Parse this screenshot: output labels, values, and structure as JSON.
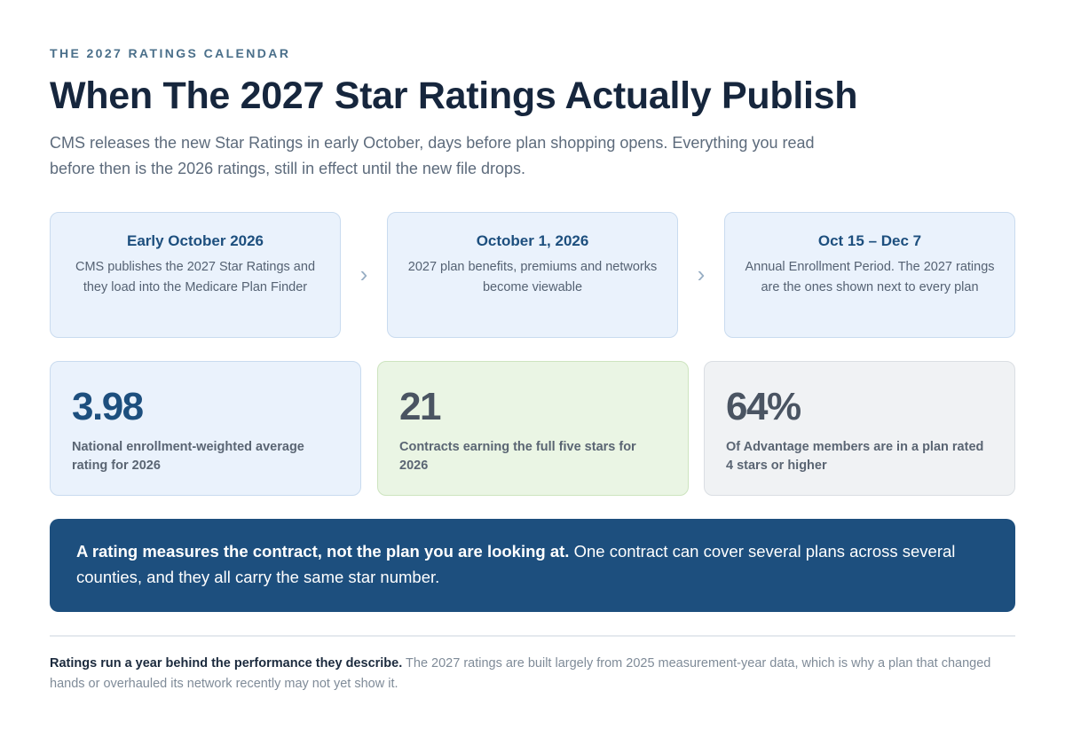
{
  "header": {
    "eyebrow": "THE 2027 RATINGS CALENDAR",
    "title": "When The 2027 Star Ratings Actually Publish",
    "subtitle": "CMS releases the new Star Ratings in early October, days before plan shopping opens. Everything you read before then is the 2026 ratings, still in effect until the new file drops."
  },
  "timeline": {
    "arrow_glyph": "›",
    "steps": [
      {
        "title": "Early October 2026",
        "description": "CMS publishes the 2027 Star Ratings and they load into the Medicare Plan Finder"
      },
      {
        "title": "October 1, 2026",
        "description": "2027 plan benefits, premiums and networks become viewable"
      },
      {
        "title": "Oct 15 – Dec 7",
        "description": "Annual Enrollment Period. The 2027 ratings are the ones shown next to every plan"
      }
    ]
  },
  "stats": [
    {
      "value": "3.98",
      "label": "National enrollment-weighted average rating for 2026",
      "color": "#1d4f7e"
    },
    {
      "value": "21",
      "label": "Contracts earning the full five stars for 2026",
      "color": "#4a5462"
    },
    {
      "value": "64%",
      "label": "Of Advantage members are in a plan rated 4 stars or higher",
      "color": "#4a5462"
    }
  ],
  "callout": {
    "bold": "A rating measures the contract, not the plan you are looking at.",
    "text": " One contract can cover several plans across several counties, and they all carry the same star number."
  },
  "footnote": {
    "bold": "Ratings run a year behind the performance they describe.",
    "text": " The 2027 ratings are built largely from 2025 measurement-year data, which is why a plan that changed hands or overhauled its network recently may not yet show it."
  },
  "colors": {
    "accent": "#1d4f7e",
    "eyebrow": "#4a6f8a",
    "card_blue": "#eaf2fc",
    "card_green": "#eaf5e4",
    "card_gray": "#f0f2f4"
  }
}
